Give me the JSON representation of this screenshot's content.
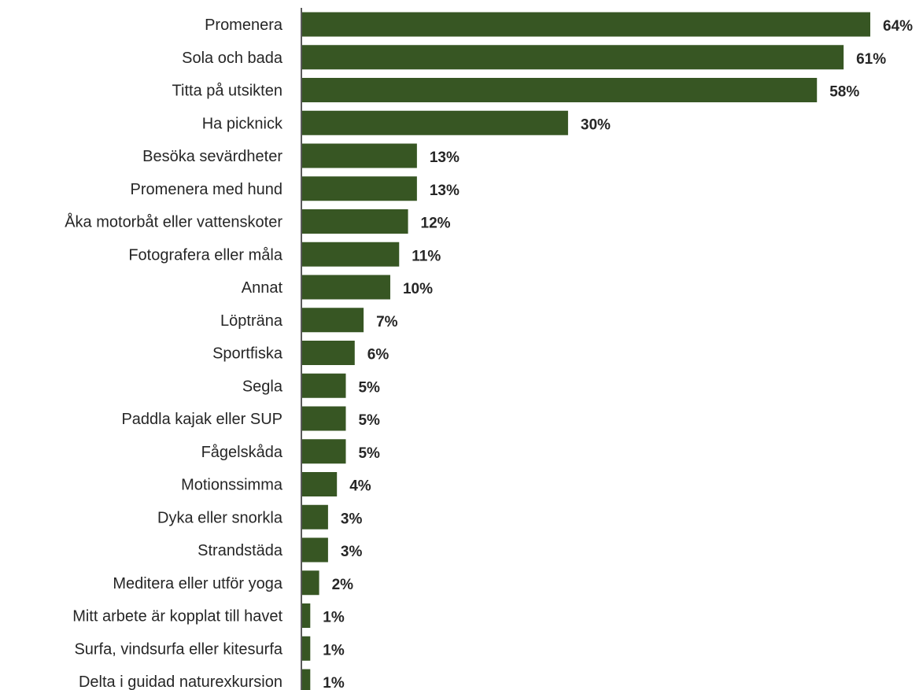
{
  "chart_data": {
    "type": "bar",
    "orientation": "horizontal",
    "categories": [
      "Promenera",
      "Sola och bada",
      "Titta på utsikten",
      "Ha picknick",
      "Besöka sevärdheter",
      "Promenera med hund",
      "Åka motorbåt eller vattenskoter",
      "Fotografera eller måla",
      "Annat",
      "Löpträna",
      "Sportfiska",
      "Segla",
      "Paddla kajak eller SUP",
      "Fågelskåda",
      "Motionssimma",
      "Dyka eller snorkla",
      "Strandstäda",
      "Meditera eller utför yoga",
      "Mitt arbete är kopplat till havet",
      "Surfa, vindsurfa eller kitesurfa",
      "Delta i guidad naturexkursion"
    ],
    "values": [
      64,
      61,
      58,
      30,
      13,
      13,
      12,
      11,
      10,
      7,
      6,
      5,
      5,
      5,
      4,
      3,
      3,
      2,
      1,
      1,
      1
    ],
    "value_labels": [
      "64%",
      "61%",
      "58%",
      "30%",
      "13%",
      "13%",
      "12%",
      "11%",
      "10%",
      "7%",
      "6%",
      "5%",
      "5%",
      "5%",
      "4%",
      "3%",
      "3%",
      "2%",
      "1%",
      "1%",
      "1%"
    ],
    "unit": "%",
    "xlim": [
      0,
      64
    ],
    "grid": false,
    "legend": "none",
    "bar_color": "#375623",
    "axis_color": "#595959",
    "text_color": "#262626"
  }
}
